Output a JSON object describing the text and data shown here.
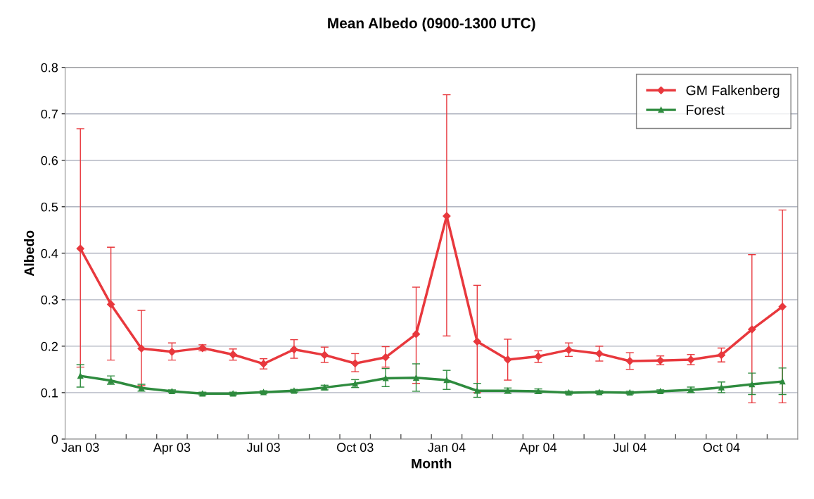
{
  "chart_data": {
    "type": "line",
    "title": "Mean Albedo (0900-1300 UTC)",
    "xlabel": "Month",
    "ylabel": "Albedo",
    "categories": [
      "Jan 03",
      null,
      null,
      "Apr 03",
      null,
      null,
      "Jul 03",
      null,
      null,
      "Oct 03",
      null,
      null,
      "Jan 04",
      null,
      null,
      "Apr 04",
      null,
      null,
      "Jul 04",
      null,
      null,
      "Oct 04",
      null,
      null
    ],
    "ylim": [
      0,
      0.8
    ],
    "yticks": [
      0,
      0.1,
      0.2,
      0.3,
      0.4,
      0.5,
      0.6,
      0.7,
      0.8
    ],
    "grid": "y",
    "legend": "top right",
    "line_style": "solid",
    "series": [
      {
        "name": "GM Falkenberg",
        "color": "#e8383d",
        "marker": "diamond",
        "values": [
          0.41,
          0.29,
          0.195,
          0.188,
          0.196,
          0.182,
          0.162,
          0.193,
          0.181,
          0.163,
          0.176,
          0.226,
          0.48,
          0.21,
          0.171,
          0.178,
          0.192,
          0.184,
          0.168,
          0.169,
          0.171,
          0.181,
          0.236,
          0.285
        ],
        "errors": [
          [
            0.155,
            0.668
          ],
          [
            0.17,
            0.413
          ],
          [
            0.115,
            0.277
          ],
          [
            0.17,
            0.207
          ],
          [
            0.19,
            0.203
          ],
          [
            0.17,
            0.194
          ],
          [
            0.151,
            0.173
          ],
          [
            0.174,
            0.214
          ],
          [
            0.165,
            0.198
          ],
          [
            0.145,
            0.184
          ],
          [
            0.155,
            0.199
          ],
          [
            0.12,
            0.327
          ],
          [
            0.222,
            0.741
          ],
          [
            0.1,
            0.331
          ],
          [
            0.127,
            0.215
          ],
          [
            0.165,
            0.19
          ],
          [
            0.178,
            0.207
          ],
          [
            0.168,
            0.2
          ],
          [
            0.15,
            0.186
          ],
          [
            0.16,
            0.179
          ],
          [
            0.16,
            0.182
          ],
          [
            0.166,
            0.196
          ],
          [
            0.078,
            0.397
          ],
          [
            0.078,
            0.493
          ]
        ]
      },
      {
        "name": "Forest",
        "color": "#2e8b3e",
        "marker": "triangle",
        "values": [
          0.136,
          0.126,
          0.11,
          0.103,
          0.098,
          0.098,
          0.101,
          0.104,
          0.111,
          0.119,
          0.131,
          0.132,
          0.127,
          0.104,
          0.104,
          0.103,
          0.1,
          0.101,
          0.1,
          0.103,
          0.106,
          0.111,
          0.118,
          0.124
        ],
        "errors": [
          [
            0.112,
            0.16
          ],
          [
            0.118,
            0.136
          ],
          [
            0.103,
            0.118
          ],
          [
            0.1,
            0.106
          ],
          [
            0.095,
            0.101
          ],
          [
            0.095,
            0.101
          ],
          [
            0.098,
            0.104
          ],
          [
            0.101,
            0.107
          ],
          [
            0.106,
            0.116
          ],
          [
            0.111,
            0.128
          ],
          [
            0.113,
            0.152
          ],
          [
            0.103,
            0.162
          ],
          [
            0.107,
            0.148
          ],
          [
            0.09,
            0.12
          ],
          [
            0.099,
            0.11
          ],
          [
            0.098,
            0.108
          ],
          [
            0.097,
            0.103
          ],
          [
            0.098,
            0.104
          ],
          [
            0.097,
            0.103
          ],
          [
            0.1,
            0.106
          ],
          [
            0.1,
            0.112
          ],
          [
            0.1,
            0.123
          ],
          [
            0.096,
            0.142
          ],
          [
            0.096,
            0.153
          ]
        ]
      }
    ]
  }
}
